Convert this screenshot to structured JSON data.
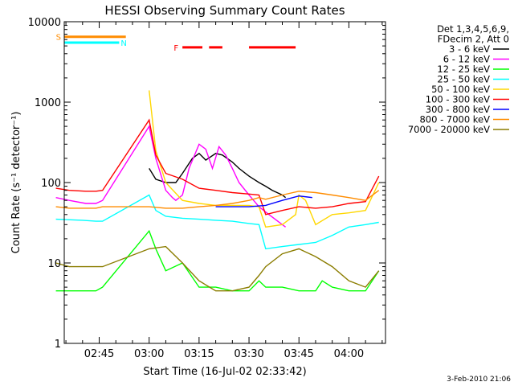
{
  "chart_data": {
    "type": "line",
    "title": "HESSI Observing Summary Count Rates",
    "xlabel": "Start Time (16-Jul-02 02:33:42)",
    "ylabel": "Count Rate (s⁻¹ detector⁻¹)",
    "y_scale": "log",
    "ylim": [
      1,
      10000
    ],
    "xlim_minutes_after_0230": [
      4.5,
      101
    ],
    "x_tick_labels": [
      "02:45",
      "03:00",
      "03:15",
      "03:30",
      "03:45",
      "04:00"
    ],
    "x_tick_minutes_after_0230": [
      15,
      30,
      45,
      60,
      75,
      90
    ],
    "y_tick_labels": [
      "1",
      "10",
      "100",
      "1000",
      "10000"
    ],
    "y_tick_values": [
      1,
      10,
      100,
      1000,
      10000
    ],
    "legend_header": [
      "Det 1,3,4,5,6,9,",
      "FDecim 2, Att 0"
    ],
    "legend_placement": "right, outside plot",
    "grid": false,
    "series": [
      {
        "name": "3 - 6 keV",
        "color": "#000000",
        "x": [
          30,
          32,
          35,
          38,
          40,
          43,
          45,
          47,
          50,
          52,
          55,
          57,
          60,
          63,
          65,
          67,
          70,
          71
        ],
        "y": [
          150,
          110,
          100,
          100,
          130,
          200,
          230,
          190,
          230,
          220,
          180,
          150,
          120,
          100,
          90,
          80,
          70,
          65
        ]
      },
      {
        "name": "6 - 12 keV",
        "color": "#ff00ff",
        "x": [
          2,
          6,
          11,
          14,
          16,
          30,
          32,
          35,
          37,
          38,
          40,
          42,
          45,
          47,
          49,
          51,
          53,
          55,
          57,
          60,
          63,
          66,
          70,
          71
        ],
        "y": [
          65,
          60,
          55,
          55,
          60,
          500,
          200,
          80,
          65,
          60,
          70,
          150,
          300,
          260,
          150,
          280,
          220,
          150,
          100,
          70,
          50,
          40,
          30,
          28
        ],
        "segments": 3
      },
      {
        "name": "12 - 25 keV",
        "color": "#00ff00",
        "x": [
          2,
          10,
          14,
          16,
          30,
          32,
          35,
          40,
          45,
          50,
          55,
          60,
          63,
          65,
          70,
          75,
          80,
          82,
          85,
          90,
          95,
          99
        ],
        "y": [
          4.5,
          4.5,
          4.5,
          5,
          25,
          15,
          8,
          10,
          5,
          5,
          4.5,
          4.5,
          6,
          5,
          5,
          4.5,
          4.5,
          6,
          5,
          4.5,
          4.5,
          8
        ],
        "segments": 3
      },
      {
        "name": "25 - 50 keV",
        "color": "#00ffff",
        "x": [
          2,
          10,
          14,
          16,
          30,
          32,
          35,
          40,
          45,
          50,
          55,
          60,
          63,
          65,
          70,
          75,
          80,
          85,
          90,
          95,
          99
        ],
        "y": [
          35,
          34,
          33,
          33,
          70,
          45,
          38,
          36,
          35,
          34,
          33,
          31,
          30,
          15,
          16,
          17,
          18,
          22,
          28,
          30,
          32
        ],
        "segments": 3
      },
      {
        "name": "50 - 100 keV",
        "color": "#ffd700",
        "x": [
          30,
          32,
          35,
          40,
          45,
          50,
          55,
          60,
          63,
          65,
          70,
          74,
          75,
          77,
          80,
          85,
          90,
          95,
          99
        ],
        "y": [
          1400,
          250,
          100,
          60,
          55,
          52,
          52,
          52,
          50,
          28,
          30,
          40,
          70,
          60,
          30,
          40,
          42,
          45,
          100
        ],
        "segments": 2
      },
      {
        "name": "100 - 300 keV",
        "color": "#ff0000",
        "x": [
          2,
          6,
          11,
          14,
          16,
          30,
          32,
          35,
          40,
          45,
          50,
          55,
          60,
          63,
          65,
          70,
          75,
          80,
          85,
          90,
          95,
          99
        ],
        "y": [
          85,
          80,
          78,
          78,
          80,
          600,
          220,
          130,
          110,
          85,
          80,
          75,
          72,
          70,
          40,
          45,
          50,
          48,
          50,
          55,
          58,
          120
        ],
        "segments": 3
      },
      {
        "name": "300 - 800 keV",
        "color": "#0000ff",
        "x": [
          50,
          55,
          60,
          65,
          70,
          75,
          79
        ],
        "y": [
          50,
          50,
          50,
          52,
          60,
          68,
          65
        ]
      },
      {
        "name": "800 - 7000 keV",
        "color": "#ff8c00",
        "x": [
          2,
          6,
          11,
          14,
          16,
          30,
          35,
          40,
          45,
          50,
          55,
          60,
          63,
          65,
          70,
          75,
          80,
          85,
          90,
          95,
          99
        ],
        "y": [
          50,
          48,
          48,
          48,
          50,
          50,
          48,
          48,
          50,
          52,
          55,
          60,
          65,
          62,
          70,
          78,
          75,
          70,
          65,
          60,
          80
        ],
        "segments": 3
      },
      {
        "name": "7000 - 20000 keV",
        "color": "#8b7d00",
        "x": [
          2,
          6,
          11,
          14,
          16,
          30,
          35,
          40,
          45,
          50,
          55,
          60,
          63,
          65,
          70,
          75,
          80,
          85,
          90,
          95,
          99
        ],
        "y": [
          10,
          9,
          9,
          9,
          9,
          15,
          16,
          10,
          6,
          4.5,
          4.5,
          5,
          7,
          9,
          13,
          15,
          12,
          9,
          6,
          5,
          8
        ],
        "segments": 3
      }
    ],
    "flags": [
      {
        "label": "S",
        "color": "#ff8c00",
        "x_start": 4.5,
        "x_end": 23,
        "y": 6500
      },
      {
        "label": "N",
        "color": "#00ffff",
        "x_start": 4.5,
        "x_end": 21,
        "y": 5500
      },
      {
        "label": "F",
        "color": "#ff0000",
        "segments": [
          [
            40,
            46
          ],
          [
            48,
            52
          ],
          [
            60,
            74
          ]
        ],
        "y": 4800
      }
    ],
    "timestamp": "3-Feb-2010 21:06"
  }
}
